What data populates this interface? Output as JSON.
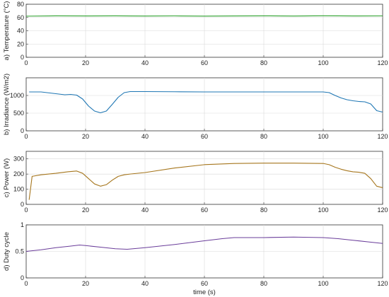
{
  "chart_data": [
    {
      "type": "line",
      "ylabel": "a) Temperature (°C)",
      "xlabel": "",
      "xlim": [
        0,
        120
      ],
      "ylim": [
        0,
        80
      ],
      "xticks": [
        0,
        20,
        40,
        60,
        80,
        100,
        120
      ],
      "yticks": [
        0,
        20,
        40,
        60,
        80
      ],
      "grid": true,
      "color": "#2ca02c",
      "series": [
        {
          "x": [
            0,
            10,
            20,
            30,
            40,
            50,
            60,
            70,
            80,
            90,
            100,
            110,
            120
          ],
          "y": [
            62,
            62.5,
            62.3,
            62.5,
            62.2,
            62.4,
            62.1,
            62.3,
            62.5,
            62.2,
            62.6,
            62.3,
            62.4
          ]
        }
      ]
    },
    {
      "type": "line",
      "ylabel": "b) Irradiance (W/m2)",
      "xlabel": "",
      "xlim": [
        0,
        120
      ],
      "ylim": [
        0,
        1500
      ],
      "xticks": [
        0,
        20,
        40,
        60,
        80,
        100,
        120
      ],
      "yticks": [
        0,
        500,
        1000
      ],
      "grid": true,
      "color": "#1f77b4",
      "series": [
        {
          "x": [
            1,
            5,
            10,
            13,
            15,
            17,
            19,
            21,
            23,
            25,
            27,
            29,
            31,
            33,
            35,
            40,
            50,
            60,
            70,
            80,
            90,
            100,
            102,
            104,
            106,
            108,
            110,
            112,
            114,
            116,
            118,
            120
          ],
          "y": [
            1100,
            1100,
            1050,
            1020,
            1030,
            1010,
            900,
            700,
            560,
            510,
            560,
            750,
            950,
            1080,
            1110,
            1110,
            1105,
            1100,
            1100,
            1100,
            1100,
            1100,
            1080,
            1000,
            930,
            880,
            850,
            830,
            820,
            760,
            570,
            530
          ]
        }
      ]
    },
    {
      "type": "line",
      "ylabel": "c) Power (W)",
      "xlabel": "",
      "xlim": [
        0,
        120
      ],
      "ylim": [
        0,
        350
      ],
      "xticks": [
        0,
        20,
        40,
        60,
        80,
        100,
        120
      ],
      "yticks": [
        0,
        100,
        200,
        300
      ],
      "grid": true,
      "color": "#a6761d",
      "series": [
        {
          "x": [
            1,
            2,
            5,
            10,
            14,
            17,
            19,
            21,
            23,
            25,
            27,
            29,
            31,
            33,
            35,
            40,
            50,
            60,
            70,
            80,
            90,
            100,
            102,
            104,
            106,
            108,
            110,
            112,
            114,
            116,
            118,
            120
          ],
          "y": [
            30,
            185,
            195,
            205,
            215,
            220,
            205,
            170,
            135,
            120,
            130,
            160,
            185,
            195,
            200,
            210,
            240,
            262,
            270,
            272,
            272,
            270,
            262,
            245,
            232,
            222,
            215,
            212,
            205,
            170,
            120,
            110
          ]
        }
      ]
    },
    {
      "type": "line",
      "ylabel": "d) Duty cycle",
      "xlabel": "time (s)",
      "xlim": [
        0,
        120
      ],
      "ylim": [
        0,
        1
      ],
      "xticks": [
        0,
        20,
        40,
        60,
        80,
        100,
        120
      ],
      "yticks": [
        0,
        0.5,
        1
      ],
      "grid": true,
      "color": "#6a3d9a",
      "series": [
        {
          "x": [
            0,
            5,
            10,
            15,
            18,
            20,
            25,
            30,
            34,
            40,
            50,
            60,
            66,
            70,
            80,
            90,
            100,
            105,
            110,
            115,
            120
          ],
          "y": [
            0.5,
            0.53,
            0.57,
            0.6,
            0.62,
            0.61,
            0.58,
            0.55,
            0.54,
            0.57,
            0.63,
            0.7,
            0.74,
            0.76,
            0.76,
            0.77,
            0.76,
            0.74,
            0.71,
            0.68,
            0.65
          ]
        }
      ]
    }
  ]
}
